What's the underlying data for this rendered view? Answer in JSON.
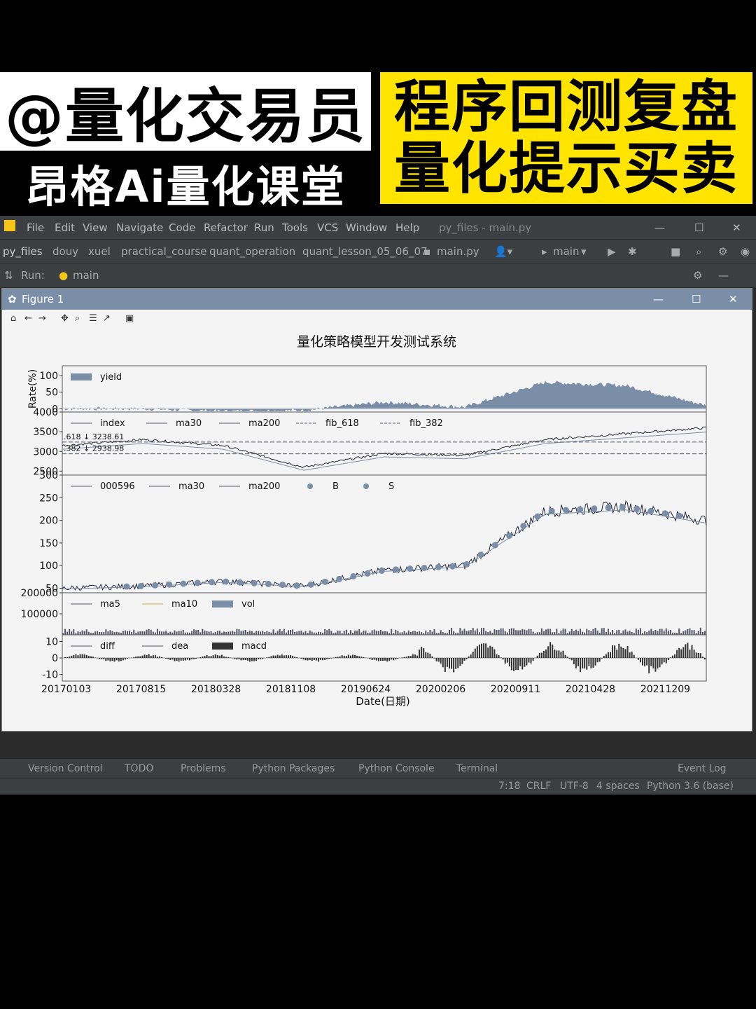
{
  "banners": {
    "handle": "@量化交易员",
    "course": "昂格Ai量化课堂",
    "right_line1": "程序回测复盘",
    "right_line2": "量化提示买卖"
  },
  "ide": {
    "menu": [
      "File",
      "Edit",
      "View",
      "Navigate",
      "Code",
      "Refactor",
      "Run",
      "Tools",
      "VCS",
      "Window",
      "Help"
    ],
    "window_title": "py_files - main.py",
    "breadcrumbs": [
      "py_files",
      "douy",
      "xuel",
      "practical_course",
      "quant_operation",
      "quant_lesson_05_06_07"
    ],
    "file_tab": "main.py",
    "branch": "main",
    "run_label": "Run:",
    "run_config": "main",
    "bottom_tools": [
      "Version Control",
      "TODO",
      "Problems",
      "Python Packages",
      "Python Console",
      "Terminal"
    ],
    "event_log": "Event Log",
    "status": {
      "position": "7:18",
      "line_sep": "CRLF",
      "encoding": "UTF-8",
      "indent": "4 spaces",
      "interpreter": "Python 3.6 (base)"
    }
  },
  "figure": {
    "window_title": "Figure 1",
    "title": "量化策略模型开发测试系统",
    "xlabel": "Date(日期)"
  },
  "chart_data": [
    {
      "type": "area",
      "panel": "yield",
      "ylabel": "Rate(%)",
      "yticks": [
        0,
        50,
        100
      ],
      "ylim": [
        -10,
        130
      ],
      "legend": [
        "yield"
      ],
      "x": [
        "20170103",
        "20170815",
        "20180328",
        "20181108",
        "20190624",
        "20200206",
        "20200911",
        "20210428",
        "20211209"
      ],
      "series": [
        {
          "name": "yield",
          "values": [
            0,
            0,
            -8,
            -5,
            20,
            5,
            80,
            70,
            10
          ]
        }
      ]
    },
    {
      "type": "line",
      "panel": "index",
      "yticks": [
        2500,
        3000,
        3500,
        4000
      ],
      "ylim": [
        2400,
        4000
      ],
      "legend": [
        "index",
        "ma30",
        "ma200",
        "fib_618",
        "fib_382"
      ],
      "annotations": [
        ".618 ↓ 3238.61",
        ".382 ↓ 2938.98"
      ],
      "fib_levels": [
        3238.61,
        2938.98
      ],
      "x": [
        "20170103",
        "20170815",
        "20180328",
        "20181108",
        "20190624",
        "20200206",
        "20200911",
        "20210428",
        "20211209"
      ],
      "series": [
        {
          "name": "index",
          "values": [
            3150,
            3300,
            3150,
            2600,
            2950,
            2900,
            3300,
            3450,
            3600
          ]
        }
      ]
    },
    {
      "type": "line",
      "panel": "stock",
      "yticks": [
        50,
        100,
        150,
        200,
        250,
        300
      ],
      "ylim": [
        40,
        300
      ],
      "legend": [
        "000596",
        "ma30",
        "ma200",
        "B",
        "S"
      ],
      "x": [
        "20170103",
        "20170815",
        "20180328",
        "20181108",
        "20190624",
        "20200206",
        "20200911",
        "20210428",
        "20211209"
      ],
      "series": [
        {
          "name": "000596",
          "values": [
            50,
            55,
            65,
            55,
            90,
            100,
            220,
            230,
            200
          ]
        }
      ]
    },
    {
      "type": "bar",
      "panel": "volume",
      "yticks": [
        100000,
        200000
      ],
      "ylim": [
        0,
        200000
      ],
      "legend": [
        "ma5",
        "ma10",
        "vol"
      ]
    },
    {
      "type": "bar",
      "panel": "macd",
      "yticks": [
        -10,
        0,
        10
      ],
      "ylim": [
        -14,
        14
      ],
      "legend": [
        "diff",
        "dea",
        "macd"
      ],
      "x_ticks": [
        "20170103",
        "20170815",
        "20180328",
        "20181108",
        "20190624",
        "20200206",
        "20200911",
        "20210428",
        "20211209"
      ]
    }
  ]
}
